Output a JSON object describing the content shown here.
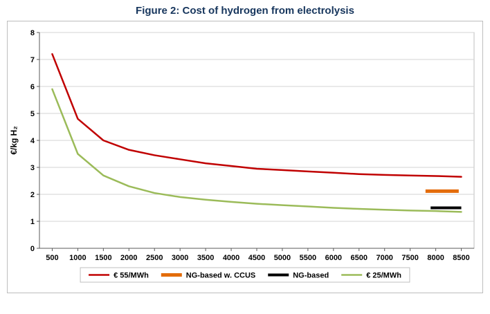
{
  "page": {
    "title": "Figure 2: Cost of hydrogen from electrolysis"
  },
  "colors": {
    "title": "#17365D",
    "gridline": "#D3D3D3",
    "axis": "#595959",
    "plot_border": "#BFBFBF",
    "chart_border": "#BDBDBD"
  },
  "chart_data": {
    "type": "line",
    "title": "Figure 2: Cost of hydrogen from electrolysis",
    "xlabel": "",
    "ylabel": "€/kg H₂",
    "ylim": [
      0,
      8
    ],
    "yticks": [
      0,
      1,
      2,
      3,
      4,
      5,
      6,
      7,
      8
    ],
    "grid": true,
    "legend_position": "bottom",
    "x": [
      500,
      1000,
      1500,
      2000,
      2500,
      3000,
      3500,
      4000,
      4500,
      5000,
      5500,
      6000,
      6500,
      7000,
      7500,
      8000,
      8500
    ],
    "series": [
      {
        "name": "€ 55/MWh",
        "color": "#C00000",
        "line_width": 2.5,
        "values": [
          7.2,
          4.8,
          4.0,
          3.65,
          3.45,
          3.3,
          3.15,
          3.05,
          2.95,
          2.9,
          2.85,
          2.8,
          2.75,
          2.72,
          2.7,
          2.68,
          2.65
        ]
      },
      {
        "name": "€ 25/MWh",
        "color": "#9BBB59",
        "line_width": 2.5,
        "values": [
          5.9,
          3.5,
          2.7,
          2.3,
          2.05,
          1.9,
          1.8,
          1.72,
          1.65,
          1.6,
          1.55,
          1.5,
          1.46,
          1.43,
          1.4,
          1.38,
          1.35
        ]
      }
    ],
    "reference_segments": [
      {
        "name": "NG-based w. CCUS",
        "color": "#E36C0A",
        "line_width": 5,
        "x_start": 7800,
        "x_end": 8450,
        "y": 2.12
      },
      {
        "name": "NG-based",
        "color": "#000000",
        "line_width": 4,
        "x_start": 7900,
        "x_end": 8500,
        "y": 1.5
      }
    ],
    "legend": {
      "entries": [
        {
          "label": "€ 55/MWh",
          "color": "#C00000",
          "line_width": 2.5
        },
        {
          "label": "NG-based w. CCUS",
          "color": "#E36C0A",
          "line_width": 5
        },
        {
          "label": "NG-based",
          "color": "#000000",
          "line_width": 4
        },
        {
          "label": "€ 25/MWh",
          "color": "#9BBB59",
          "line_width": 2.5
        }
      ]
    }
  }
}
